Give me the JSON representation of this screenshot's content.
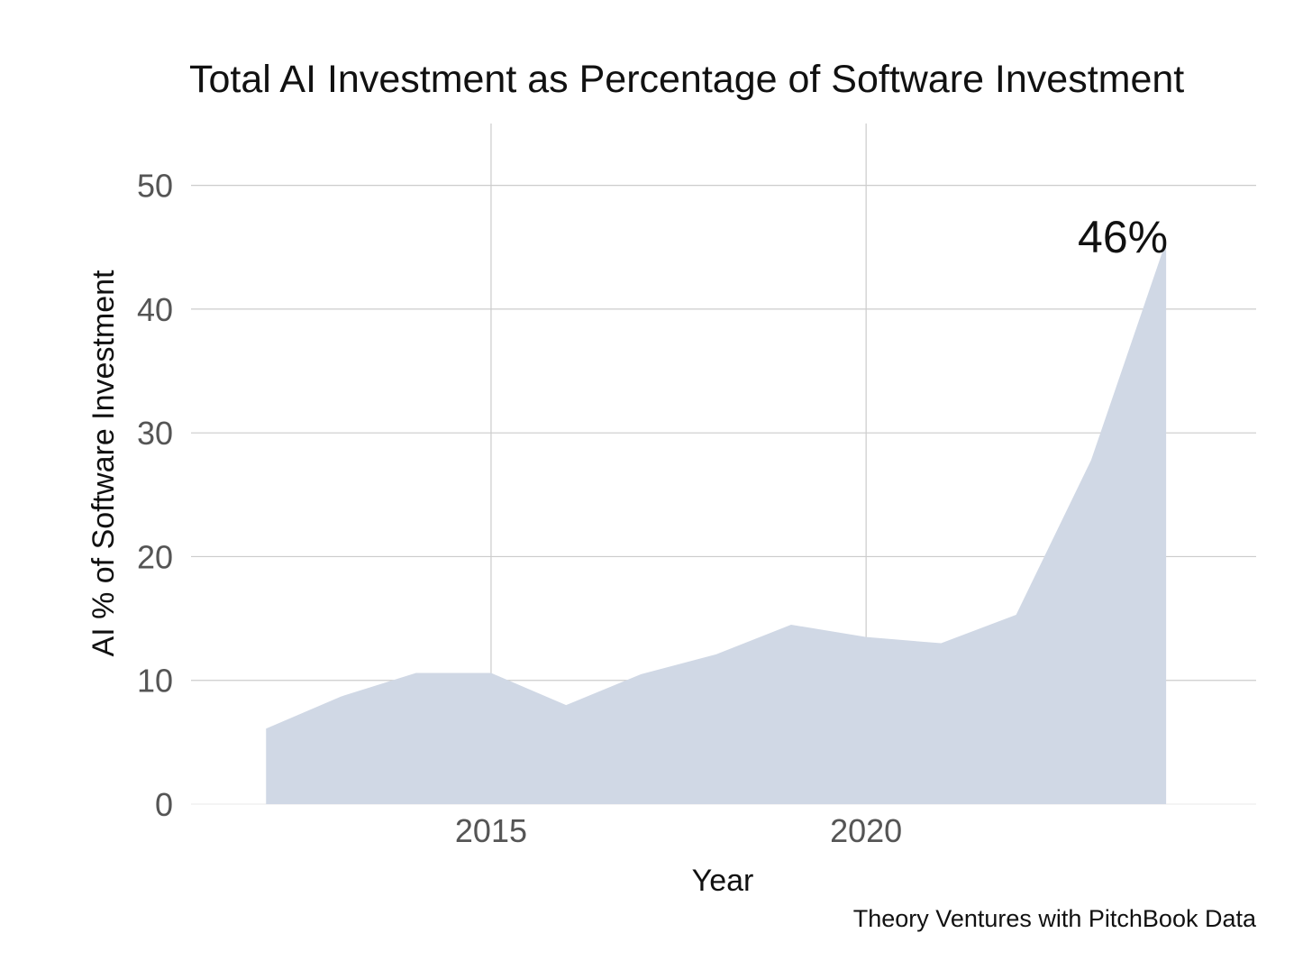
{
  "chart_data": {
    "type": "area",
    "title": "Total AI Investment as Percentage of Software Investment",
    "xlabel": "Year",
    "ylabel": "AI % of Software Investment",
    "x": [
      2012,
      2013,
      2014,
      2015,
      2016,
      2017,
      2018,
      2019,
      2020,
      2021,
      2022,
      2023,
      2024
    ],
    "series": [
      {
        "values": [
          6.1,
          8.7,
          10.6,
          10.6,
          8.0,
          10.5,
          12.1,
          14.5,
          13.5,
          13.0,
          15.3,
          27.8,
          45.5
        ]
      }
    ],
    "xlim": [
      2011.0,
      2025.2
    ],
    "ylim": [
      0,
      55
    ],
    "x_ticks": [
      2015,
      2020
    ],
    "y_ticks": [
      0,
      10,
      20,
      30,
      40,
      50
    ],
    "grid": true,
    "annotation": {
      "text": "46%",
      "x": 2024,
      "y": 45.5
    },
    "source": "Theory Ventures with PitchBook Data",
    "colors": {
      "area": "#d0d8e5",
      "grid": "#cccccc",
      "text": "#111111",
      "tick": "#555555"
    }
  }
}
